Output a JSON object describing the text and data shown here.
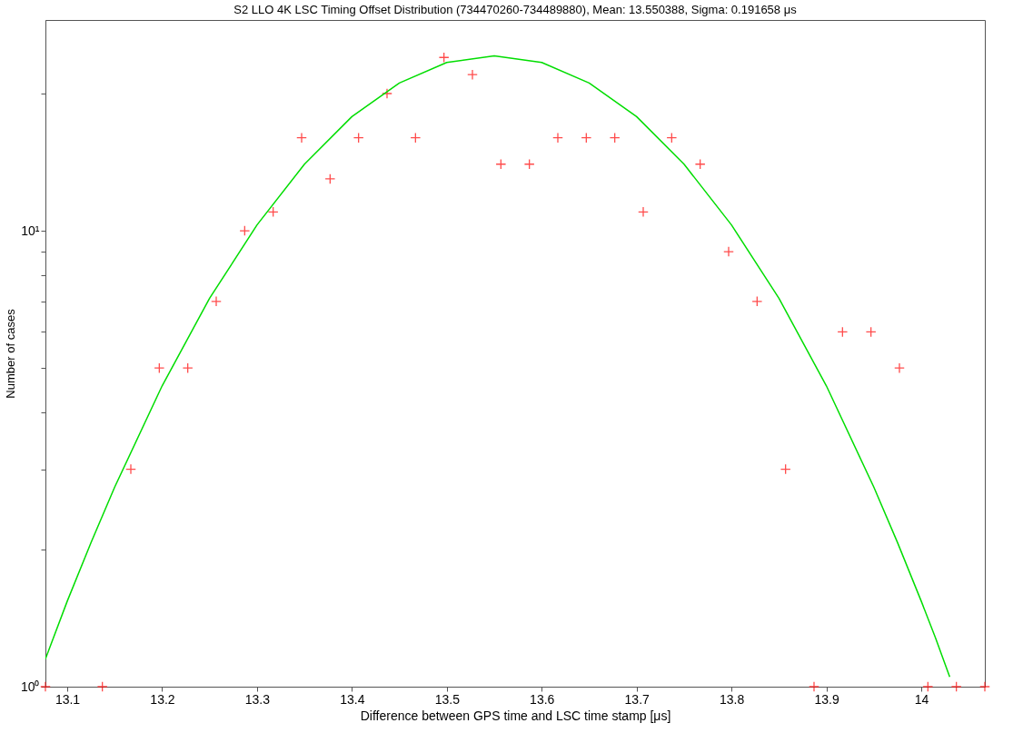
{
  "chart_data": {
    "type": "scatter",
    "title": "S2 LLO 4K LSC Timing Offset Distribution (734470260-734489880), Mean: 13.550388, Sigma: 0.191658 μs",
    "xlabel": "Difference between GPS time and LSC time stamp [μs]",
    "ylabel": "Number of cases",
    "series": [
      {
        "color": "#ff0000",
        "x": [
          13.077,
          13.137,
          13.167,
          13.197,
          13.227,
          13.257,
          13.287,
          13.317,
          13.347,
          13.377,
          13.407,
          13.437,
          13.467,
          13.497,
          13.527,
          13.557,
          13.587,
          13.617,
          13.647,
          13.677,
          13.707,
          13.737,
          13.767,
          13.797,
          13.827,
          13.857,
          13.887,
          13.917,
          13.947,
          13.977,
          14.007,
          14.037,
          14.067
        ],
        "values": [
          1,
          1,
          3,
          5,
          5,
          7,
          10,
          11,
          16,
          13,
          16,
          20,
          16,
          24,
          22,
          14,
          14,
          16,
          16,
          16,
          11,
          16,
          14,
          9,
          7,
          3,
          1,
          6,
          6,
          5,
          1,
          1,
          1
        ]
      },
      {
        "type": "line",
        "color": "#00dd00",
        "marker": "none",
        "line_style": "solid",
        "x": [
          13.077,
          13.1,
          13.125,
          13.15,
          13.2,
          13.25,
          13.3,
          13.35,
          13.4,
          13.45,
          13.5,
          13.55,
          13.6,
          13.65,
          13.7,
          13.75,
          13.8,
          13.85,
          13.9,
          13.95,
          13.975,
          14.0,
          14.015,
          14.03
        ],
        "values": [
          1.15,
          1.54,
          2.07,
          2.74,
          4.57,
          7.11,
          10.3,
          14.0,
          17.8,
          21.1,
          23.4,
          24.2,
          23.4,
          21.1,
          17.8,
          14.0,
          10.3,
          7.11,
          4.57,
          2.74,
          2.07,
          1.54,
          1.28,
          1.05
        ]
      }
    ],
    "log": "y",
    "xlim": [
      13.077,
      14.067
    ],
    "ylim": [
      1,
      29
    ],
    "xticks": [
      13.1,
      13.2,
      13.3,
      13.4,
      13.5,
      13.6,
      13.7,
      13.8,
      13.9,
      14
    ],
    "yticks": [
      {
        "value": 1,
        "label": "10⁰"
      },
      {
        "value": 2,
        "label": null
      },
      {
        "value": 3,
        "label": null
      },
      {
        "value": 4,
        "label": null
      },
      {
        "value": 5,
        "label": null
      },
      {
        "value": 6,
        "label": null
      },
      {
        "value": 7,
        "label": null
      },
      {
        "value": 8,
        "label": null
      },
      {
        "value": 9,
        "label": null
      },
      {
        "value": 10,
        "label": "10¹"
      },
      {
        "value": 20,
        "label": null
      }
    ],
    "marker": "cross"
  }
}
